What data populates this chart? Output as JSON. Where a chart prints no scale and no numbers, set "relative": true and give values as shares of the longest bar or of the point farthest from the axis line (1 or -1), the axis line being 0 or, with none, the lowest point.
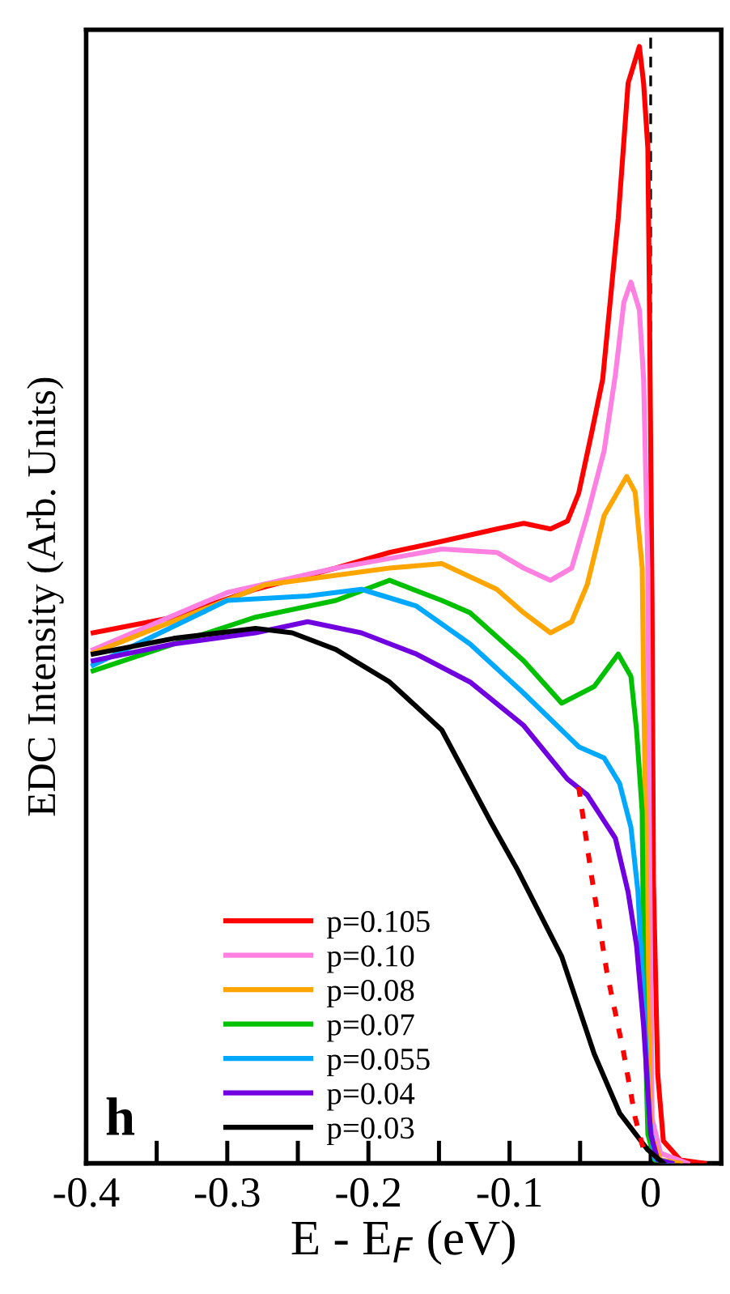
{
  "chart_data": {
    "type": "line",
    "relative": true,
    "xlabel": "E - E$_{F}$ (eV)",
    "ylabel": "EDC Intensity (Arb. Units)",
    "annotations": [
      "h"
    ],
    "xlim": [
      -0.4,
      0.05
    ],
    "xticks": [
      -0.4,
      {
        "value": -0.35,
        "label": null
      },
      -0.3,
      {
        "value": -0.25,
        "label": null
      },
      -0.2,
      {
        "value": -0.15,
        "label": null
      },
      -0.1,
      {
        "value": -0.05,
        "label": null
      },
      0
    ],
    "tick_labels": "x",
    "grid": false,
    "legend": "bottom",
    "marker": "none",
    "line_style": "solid",
    "ref_lines": [
      {
        "axis": "x",
        "value": 0,
        "color": "#000000",
        "line_style": "dashed"
      }
    ],
    "series": [
      {
        "name": "p=0.105",
        "color": "#ff0000",
        "x": [
          -0.395,
          -0.338,
          -0.28,
          -0.223,
          -0.185,
          -0.148,
          -0.109,
          -0.09,
          -0.071,
          -0.059,
          -0.051,
          -0.042,
          -0.034,
          -0.023,
          -0.016,
          -0.008,
          -0.005,
          -0.002,
          -0.001,
          0.001,
          0.002,
          0.005,
          0.009,
          0.021,
          0.038
        ],
        "values": [
          0.475,
          0.489,
          0.514,
          0.533,
          0.547,
          0.557,
          0.568,
          0.573,
          0.568,
          0.575,
          0.6,
          0.653,
          0.702,
          0.846,
          0.967,
          1.0,
          0.967,
          0.909,
          0.789,
          0.5,
          0.25,
          0.08,
          0.02,
          0.003,
          0.0
        ]
      },
      {
        "name": "p=0.10",
        "color": "#ff80e0",
        "x": [
          -0.395,
          -0.3,
          -0.223,
          -0.148,
          -0.109,
          -0.09,
          -0.071,
          -0.056,
          -0.045,
          -0.033,
          -0.025,
          -0.019,
          -0.014,
          -0.008,
          -0.005,
          -0.002,
          -0.001,
          0.001,
          0.007,
          0.026
        ],
        "values": [
          0.46,
          0.511,
          0.533,
          0.55,
          0.547,
          0.533,
          0.522,
          0.533,
          0.58,
          0.638,
          0.706,
          0.771,
          0.789,
          0.764,
          0.702,
          0.533,
          0.315,
          0.04,
          0.009,
          0.0
        ]
      },
      {
        "name": "p=0.08",
        "color": "#ffa500",
        "x": [
          -0.395,
          -0.273,
          -0.185,
          -0.148,
          -0.109,
          -0.09,
          -0.071,
          -0.056,
          -0.045,
          -0.033,
          -0.017,
          -0.011,
          -0.006,
          -0.005,
          -0.002,
          0.0,
          0.007,
          0.021
        ],
        "values": [
          0.457,
          0.518,
          0.533,
          0.537,
          0.514,
          0.493,
          0.475,
          0.485,
          0.518,
          0.58,
          0.615,
          0.601,
          0.533,
          0.431,
          0.171,
          0.026,
          0.003,
          0.0
        ]
      },
      {
        "name": "p=0.07",
        "color": "#00c000",
        "x": [
          -0.395,
          -0.338,
          -0.28,
          -0.223,
          -0.185,
          -0.148,
          -0.128,
          -0.09,
          -0.063,
          -0.04,
          -0.023,
          -0.014,
          -0.01,
          -0.006,
          -0.005,
          -0.002,
          0.003,
          0.015
        ],
        "values": [
          0.441,
          0.465,
          0.489,
          0.504,
          0.522,
          0.504,
          0.493,
          0.45,
          0.412,
          0.427,
          0.456,
          0.436,
          0.388,
          0.315,
          0.171,
          0.026,
          0.003,
          0.0
        ]
      },
      {
        "name": "p=0.055",
        "color": "#00a8ff",
        "x": [
          -0.395,
          -0.3,
          -0.243,
          -0.205,
          -0.166,
          -0.128,
          -0.09,
          -0.051,
          -0.033,
          -0.022,
          -0.014,
          -0.009,
          -0.005,
          -0.001,
          0.003,
          0.015
        ],
        "values": [
          0.446,
          0.504,
          0.508,
          0.514,
          0.499,
          0.465,
          0.421,
          0.373,
          0.363,
          0.34,
          0.301,
          0.243,
          0.146,
          0.041,
          0.004,
          0.0
        ]
      },
      {
        "name": "p=0.04",
        "color": "#7000e0",
        "x": [
          -0.395,
          -0.338,
          -0.28,
          -0.243,
          -0.205,
          -0.166,
          -0.128,
          -0.09,
          -0.059,
          -0.045,
          -0.025,
          -0.016,
          -0.01,
          -0.005,
          0.0,
          0.005,
          0.015
        ],
        "values": [
          0.45,
          0.465,
          0.475,
          0.485,
          0.475,
          0.456,
          0.431,
          0.392,
          0.344,
          0.33,
          0.291,
          0.243,
          0.195,
          0.123,
          0.026,
          0.003,
          0.0
        ]
      },
      {
        "name": "p=0.03",
        "color": "#000000",
        "x": [
          -0.395,
          -0.338,
          -0.28,
          -0.254,
          -0.223,
          -0.185,
          -0.148,
          -0.113,
          -0.094,
          -0.063,
          -0.04,
          -0.022,
          -0.002,
          0.009
        ],
        "values": [
          0.456,
          0.47,
          0.479,
          0.475,
          0.46,
          0.431,
          0.388,
          0.305,
          0.262,
          0.185,
          0.098,
          0.045,
          0.012,
          0.0
        ]
      },
      {
        "color": "#ff0000",
        "line_style": "dotted",
        "x": [
          -0.051,
          -0.042,
          -0.031,
          -0.019,
          -0.011,
          -0.005
        ],
        "values": [
          0.337,
          0.258,
          0.171,
          0.098,
          0.041,
          0.012
        ]
      }
    ]
  }
}
